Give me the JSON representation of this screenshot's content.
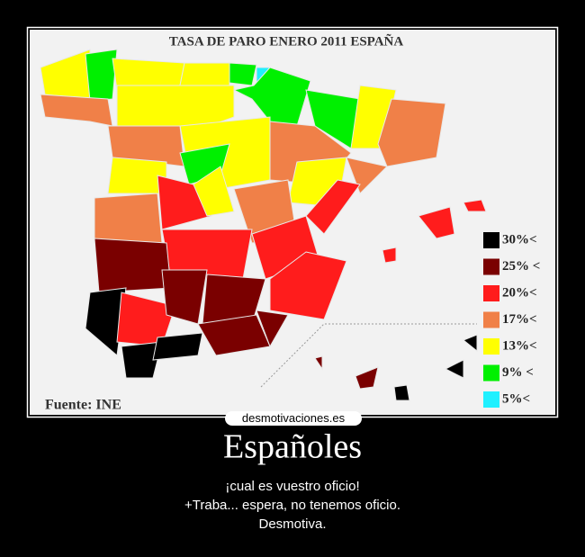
{
  "poster": {
    "map": {
      "title": "TASA DE PARO ENERO 2011 ESPAÑA",
      "source": "Fuente: INE",
      "legend": [
        {
          "label": "30%<",
          "color": "#000000"
        },
        {
          "label": "25% <",
          "color": "#7a0000"
        },
        {
          "label": "20%<",
          "color": "#ff1c1c"
        },
        {
          "label": "17%<",
          "color": "#f08048"
        },
        {
          "label": "13%<",
          "color": "#ffff00"
        },
        {
          "label": "9% <",
          "color": "#00f000"
        },
        {
          "label": "5%<",
          "color": "#20f0ff"
        }
      ]
    },
    "watermark": "desmotivaciones.es",
    "title": "Españoles",
    "caption": [
      "¡cual es vuestro oficio!",
      "+Traba... espera, no tenemos oficio.",
      "Desmotiva."
    ]
  }
}
